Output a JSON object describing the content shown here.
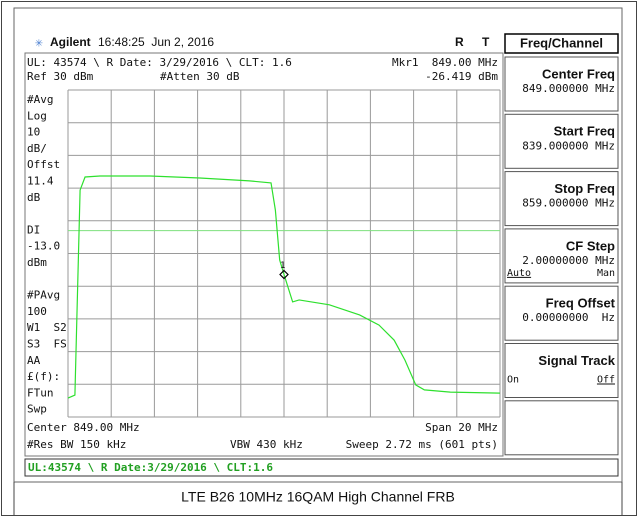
{
  "header": {
    "brand": "Agilent",
    "datetime": "16:48:25  Jun 2, 2016",
    "r": "R",
    "t": "T"
  },
  "chart_data": {
    "type": "line",
    "annotations": {
      "top": "UL: 43574 \\ R Date: 3/29/2016 \\ CLT: 1.6",
      "mkr": "Mkr1  849.00 MHz",
      "mkr_value": "-26.419 dBm",
      "ref": "Ref 30 dBm",
      "atten": "#Atten 30 dB",
      "center": "Center 849.00 MHz",
      "span": "Span 20 MHz",
      "rbw": "#Res BW 150 kHz",
      "vbw": "VBW 430 kHz",
      "sweep": "Sweep 2.72 ms (601 pts)"
    },
    "left_panel": [
      "#Avg",
      "Log",
      "10",
      "dB/",
      "Offst",
      "11.4",
      "dB",
      "",
      "DI",
      "-13.0",
      "dBm",
      "",
      "#PAvg",
      "100",
      "W1  S2",
      "S3  FS",
      "AA",
      "£(f):",
      "FTun",
      "Swp"
    ],
    "xlim": [
      839,
      859
    ],
    "ylim": [
      -70,
      30
    ],
    "xticks": [
      839,
      841,
      843,
      845,
      847,
      849,
      851,
      853,
      855,
      857,
      859
    ],
    "yticks": [
      30,
      20,
      10,
      0,
      -10,
      -20,
      -30,
      -40,
      -50,
      -60,
      -70
    ],
    "grid": true,
    "display_line": -13,
    "display_line_color": "#7ee07e",
    "series": [
      {
        "color": "#2ee02e",
        "x": [
          839,
          839.32,
          839.56,
          839.79,
          840.48,
          842.8,
          845.1,
          847.4,
          848.4,
          848.6,
          848.8,
          849.0,
          849.4,
          849.7,
          851.1,
          852.5,
          853.4,
          854.1,
          854.6,
          855.1,
          855.5,
          856.7,
          859
        ],
        "values": [
          -64.2,
          -63.3,
          -0.6,
          3.4,
          3.7,
          3.7,
          3.1,
          2.2,
          1.6,
          -6.7,
          -22,
          -26.4,
          -34.8,
          -34.2,
          -35.7,
          -38.8,
          -41.9,
          -46.5,
          -52.6,
          -60.2,
          -61.7,
          -62.4,
          -62.7
        ]
      }
    ],
    "marker": {
      "label": "1",
      "x": 849,
      "y": -26.419
    }
  },
  "status": "UL:43574 \\ R Date:3/29/2016 \\ CLT:1.6",
  "softkeys": {
    "title": "Freq/Channel",
    "keys": [
      {
        "title": "Center Freq",
        "value": "849.000000 MHz"
      },
      {
        "title": "Start Freq",
        "value": "839.000000 MHz"
      },
      {
        "title": "Stop Freq",
        "value": "859.000000 MHz"
      },
      {
        "title": "CF Step",
        "value": "2.00000000 MHz",
        "options": [
          "Auto",
          "Man"
        ],
        "underlined": 0
      },
      {
        "title": "Freq Offset",
        "value": "0.00000000  Hz"
      },
      {
        "title": "Signal Track",
        "options": [
          "On",
          "Off"
        ],
        "underlined": 1
      },
      {}
    ]
  },
  "caption": "LTE B26 10MHz 16QAM High Channel FRB"
}
